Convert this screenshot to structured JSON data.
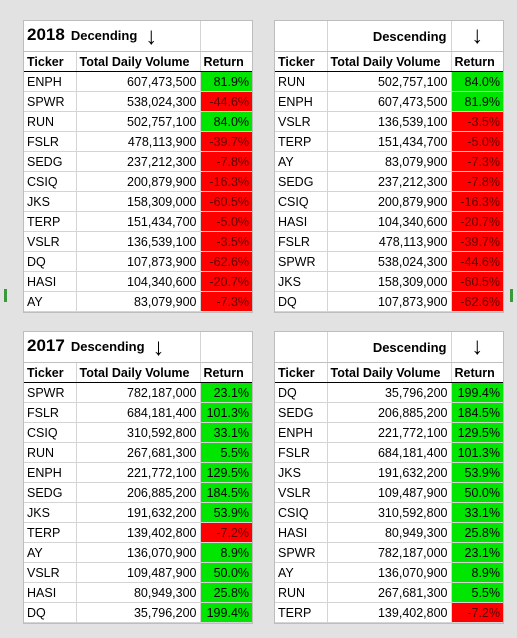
{
  "panels": [
    {
      "year": "2018",
      "sort_label": "Decending",
      "headers": {
        "ticker": "Ticker",
        "volume": "Total Daily Volume",
        "ret": "Return"
      },
      "rows": [
        {
          "ticker": "ENPH",
          "volume": "607,473,500",
          "ret": "81.9%",
          "pos": true
        },
        {
          "ticker": "SPWR",
          "volume": "538,024,300",
          "ret": "-44.6%",
          "pos": false
        },
        {
          "ticker": "RUN",
          "volume": "502,757,100",
          "ret": "84.0%",
          "pos": true
        },
        {
          "ticker": "FSLR",
          "volume": "478,113,900",
          "ret": "-39.7%",
          "pos": false
        },
        {
          "ticker": "SEDG",
          "volume": "237,212,300",
          "ret": "-7.8%",
          "pos": false
        },
        {
          "ticker": "CSIQ",
          "volume": "200,879,900",
          "ret": "-16.3%",
          "pos": false
        },
        {
          "ticker": "JKS",
          "volume": "158,309,000",
          "ret": "-60.5%",
          "pos": false
        },
        {
          "ticker": "TERP",
          "volume": "151,434,700",
          "ret": "-5.0%",
          "pos": false
        },
        {
          "ticker": "VSLR",
          "volume": "136,539,100",
          "ret": "-3.5%",
          "pos": false
        },
        {
          "ticker": "DQ",
          "volume": "107,873,900",
          "ret": "-62.6%",
          "pos": false
        },
        {
          "ticker": "HASI",
          "volume": "104,340,600",
          "ret": "-20.7%",
          "pos": false
        },
        {
          "ticker": "AY",
          "volume": "83,079,900",
          "ret": "-7.3%",
          "pos": false
        }
      ]
    },
    {
      "year": "",
      "sort_label": "Descending",
      "headers": {
        "ticker": "Ticker",
        "volume": "Total Daily Volume",
        "ret": "Return"
      },
      "rows": [
        {
          "ticker": "RUN",
          "volume": "502,757,100",
          "ret": "84.0%",
          "pos": true
        },
        {
          "ticker": "ENPH",
          "volume": "607,473,500",
          "ret": "81.9%",
          "pos": true
        },
        {
          "ticker": "VSLR",
          "volume": "136,539,100",
          "ret": "-3.5%",
          "pos": false
        },
        {
          "ticker": "TERP",
          "volume": "151,434,700",
          "ret": "-5.0%",
          "pos": false
        },
        {
          "ticker": "AY",
          "volume": "83,079,900",
          "ret": "-7.3%",
          "pos": false
        },
        {
          "ticker": "SEDG",
          "volume": "237,212,300",
          "ret": "-7.8%",
          "pos": false
        },
        {
          "ticker": "CSIQ",
          "volume": "200,879,900",
          "ret": "-16.3%",
          "pos": false
        },
        {
          "ticker": "HASI",
          "volume": "104,340,600",
          "ret": "-20.7%",
          "pos": false
        },
        {
          "ticker": "FSLR",
          "volume": "478,113,900",
          "ret": "-39.7%",
          "pos": false
        },
        {
          "ticker": "SPWR",
          "volume": "538,024,300",
          "ret": "-44.6%",
          "pos": false
        },
        {
          "ticker": "JKS",
          "volume": "158,309,000",
          "ret": "-60.5%",
          "pos": false
        },
        {
          "ticker": "DQ",
          "volume": "107,873,900",
          "ret": "-62.6%",
          "pos": false
        }
      ]
    },
    {
      "year": "2017",
      "sort_label": "Descending",
      "headers": {
        "ticker": "Ticker",
        "volume": "Total Daily Volume",
        "ret": "Return"
      },
      "rows": [
        {
          "ticker": "SPWR",
          "volume": "782,187,000",
          "ret": "23.1%",
          "pos": true
        },
        {
          "ticker": "FSLR",
          "volume": "684,181,400",
          "ret": "101.3%",
          "pos": true
        },
        {
          "ticker": "CSIQ",
          "volume": "310,592,800",
          "ret": "33.1%",
          "pos": true
        },
        {
          "ticker": "RUN",
          "volume": "267,681,300",
          "ret": "5.5%",
          "pos": true
        },
        {
          "ticker": "ENPH",
          "volume": "221,772,100",
          "ret": "129.5%",
          "pos": true
        },
        {
          "ticker": "SEDG",
          "volume": "206,885,200",
          "ret": "184.5%",
          "pos": true
        },
        {
          "ticker": "JKS",
          "volume": "191,632,200",
          "ret": "53.9%",
          "pos": true
        },
        {
          "ticker": "TERP",
          "volume": "139,402,800",
          "ret": "-7.2%",
          "pos": false
        },
        {
          "ticker": "AY",
          "volume": "136,070,900",
          "ret": "8.9%",
          "pos": true
        },
        {
          "ticker": "VSLR",
          "volume": "109,487,900",
          "ret": "50.0%",
          "pos": true
        },
        {
          "ticker": "HASI",
          "volume": "80,949,300",
          "ret": "25.8%",
          "pos": true
        },
        {
          "ticker": "DQ",
          "volume": "35,796,200",
          "ret": "199.4%",
          "pos": true
        }
      ]
    },
    {
      "year": "",
      "sort_label": "Descending",
      "headers": {
        "ticker": "Ticker",
        "volume": "Total Daily Volume",
        "ret": "Return"
      },
      "rows": [
        {
          "ticker": "DQ",
          "volume": "35,796,200",
          "ret": "199.4%",
          "pos": true
        },
        {
          "ticker": "SEDG",
          "volume": "206,885,200",
          "ret": "184.5%",
          "pos": true
        },
        {
          "ticker": "ENPH",
          "volume": "221,772,100",
          "ret": "129.5%",
          "pos": true
        },
        {
          "ticker": "FSLR",
          "volume": "684,181,400",
          "ret": "101.3%",
          "pos": true
        },
        {
          "ticker": "JKS",
          "volume": "191,632,200",
          "ret": "53.9%",
          "pos": true
        },
        {
          "ticker": "VSLR",
          "volume": "109,487,900",
          "ret": "50.0%",
          "pos": true
        },
        {
          "ticker": "CSIQ",
          "volume": "310,592,800",
          "ret": "33.1%",
          "pos": true
        },
        {
          "ticker": "HASI",
          "volume": "80,949,300",
          "ret": "25.8%",
          "pos": true
        },
        {
          "ticker": "SPWR",
          "volume": "782,187,000",
          "ret": "23.1%",
          "pos": true
        },
        {
          "ticker": "AY",
          "volume": "136,070,900",
          "ret": "8.9%",
          "pos": true
        },
        {
          "ticker": "RUN",
          "volume": "267,681,300",
          "ret": "5.5%",
          "pos": true
        },
        {
          "ticker": "TERP",
          "volume": "139,402,800",
          "ret": "-7.2%",
          "pos": false
        }
      ]
    }
  ],
  "colors": {
    "positive": "#00e600",
    "negative": "#ff0000"
  },
  "icons": {
    "sort_arrow": "down-arrow-icon"
  }
}
